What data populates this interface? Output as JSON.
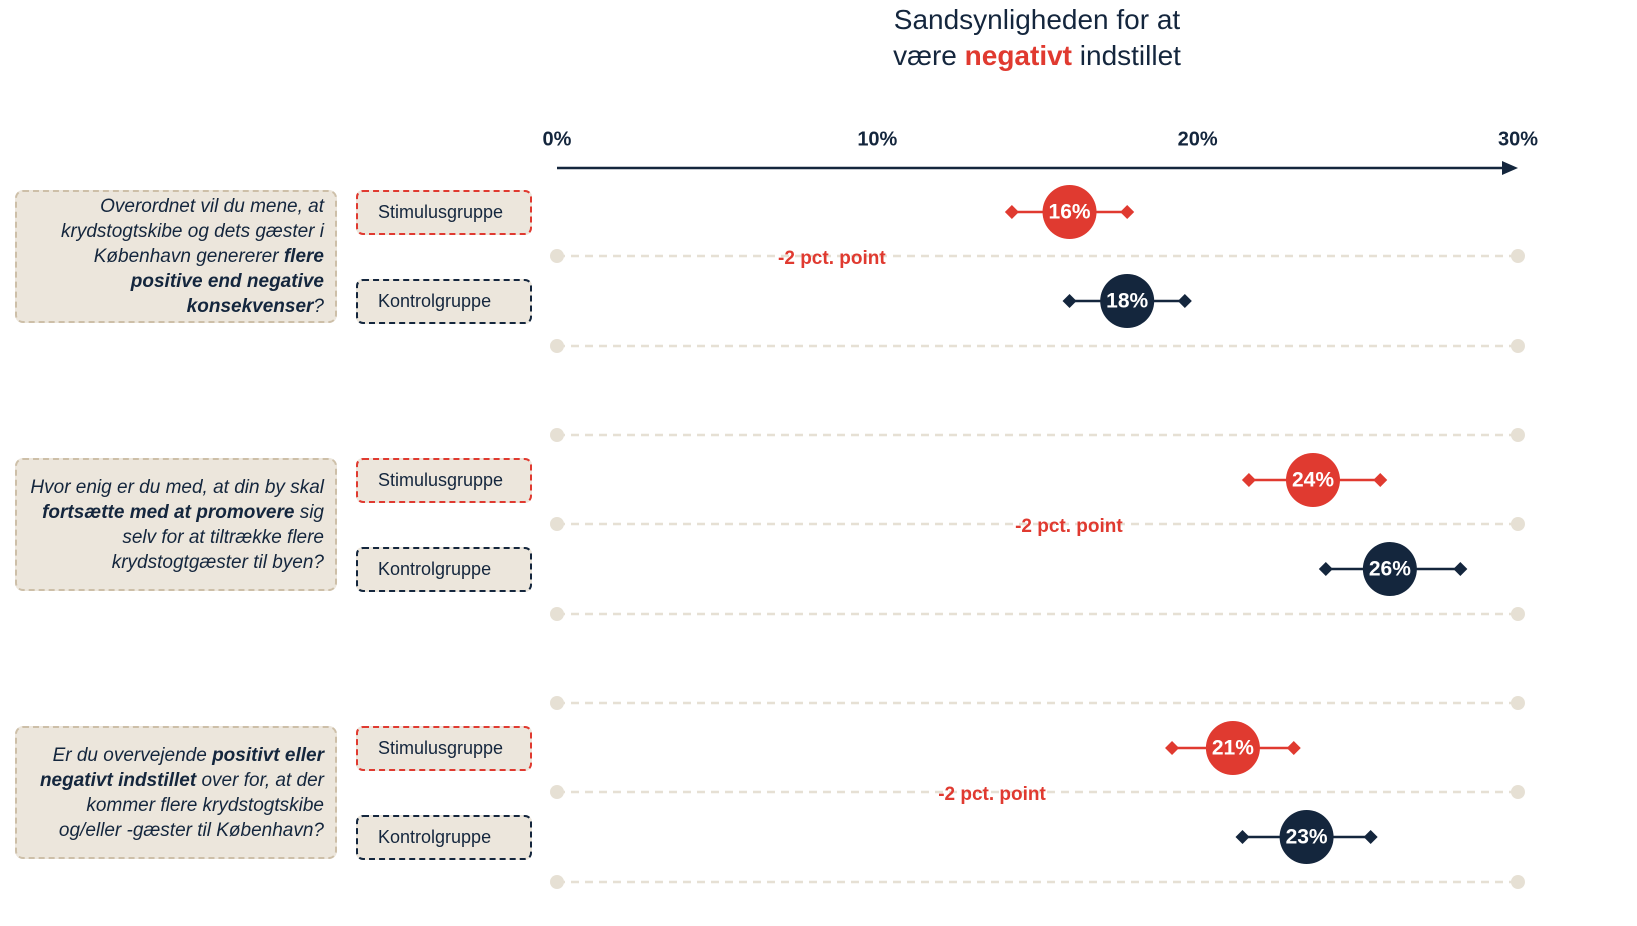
{
  "chart_data": {
    "type": "dot",
    "title_lines": [
      [
        {
          "text": "Sandsynligheden for at"
        }
      ],
      [
        {
          "text": "være "
        },
        {
          "text": "negativt",
          "highlight": true
        },
        {
          "text": " indstillet"
        }
      ]
    ],
    "highlight_color": "#e03a30",
    "xlim": [
      0,
      30
    ],
    "xticks": [
      {
        "value": 0,
        "label": "0%"
      },
      {
        "value": 10,
        "label": "10%"
      },
      {
        "value": 20,
        "label": "20%"
      },
      {
        "value": 30,
        "label": "30%"
      }
    ],
    "groups": [
      {
        "question": [
          {
            "text": "Overordnet vil du mene, at krydstogtskibe og dets gæster i København genererer "
          },
          {
            "text": "flere positive end negative konsekvenser",
            "bold": true
          },
          {
            "text": "?"
          }
        ],
        "diff_label": "-2 pct. point",
        "series": [
          {
            "name": "Stimulusgruppe",
            "color": "#e03a30",
            "value": 16,
            "value_label": "16%",
            "low": 14.2,
            "high": 17.8
          },
          {
            "name": "Kontrolgruppe",
            "color": "#14263d",
            "value": 17.8,
            "value_label": "18%",
            "low": 16.0,
            "high": 19.6
          }
        ]
      },
      {
        "question": [
          {
            "text": "Hvor enig er du med, at din by skal "
          },
          {
            "text": "fortsætte med at promovere",
            "bold": true
          },
          {
            "text": " sig selv for at tiltrække flere krydstogtgæster til byen?"
          }
        ],
        "diff_label": "-2 pct. point",
        "series": [
          {
            "name": "Stimulusgruppe",
            "color": "#e03a30",
            "value": 23.6,
            "value_label": "24%",
            "low": 21.6,
            "high": 25.7
          },
          {
            "name": "Kontrolgruppe",
            "color": "#14263d",
            "value": 26.0,
            "value_label": "26%",
            "low": 24.0,
            "high": 28.2
          }
        ]
      },
      {
        "question": [
          {
            "text": "Er du overvejende "
          },
          {
            "text": "positivt eller negativt indstillet",
            "bold": true
          },
          {
            "text": " over for, at der kommer flere krydstogtskibe og/eller -gæster til København?"
          }
        ],
        "diff_label": "-2 pct. point",
        "series": [
          {
            "name": "Stimulusgruppe",
            "color": "#e03a30",
            "value": 21.1,
            "value_label": "21%",
            "low": 19.2,
            "high": 23.0
          },
          {
            "name": "Kontrolgruppe",
            "color": "#14263d",
            "value": 23.4,
            "value_label": "23%",
            "low": 21.4,
            "high": 25.4
          }
        ]
      }
    ]
  }
}
